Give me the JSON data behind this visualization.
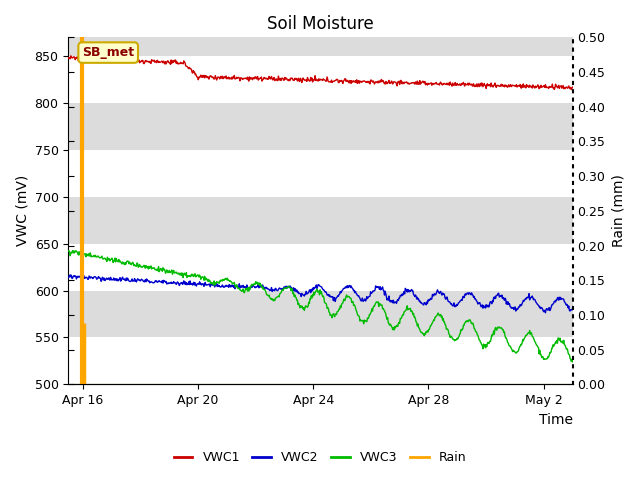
{
  "title": "Soil Moisture",
  "xlabel": "Time",
  "ylabel_left": "VWC (mV)",
  "ylabel_right": "Rain (mm)",
  "ylim_left": [
    500,
    870
  ],
  "ylim_right": [
    0.0,
    0.5
  ],
  "yticks_left": [
    500,
    550,
    600,
    650,
    700,
    750,
    800,
    850
  ],
  "yticks_right": [
    0.0,
    0.05,
    0.1,
    0.15,
    0.2,
    0.25,
    0.3,
    0.35,
    0.4,
    0.45,
    0.5
  ],
  "xtick_labels": [
    "Apr 16",
    "Apr 20",
    "Apr 24",
    "Apr 28",
    "May 2"
  ],
  "xtick_positions": [
    0.5,
    4.5,
    8.5,
    12.5,
    16.5
  ],
  "xlim": [
    0,
    17.5
  ],
  "annotation_text": "SB_met",
  "bg_color": "#dcdcdc",
  "plot_bg_color": "#dcdcdc",
  "vwc1_color": "#cc0000",
  "vwc2_color": "#0000cc",
  "vwc3_color": "#00bb00",
  "rain_color": "#ffa500",
  "grid_color": "#f0f0f0",
  "figsize": [
    6.4,
    4.8
  ],
  "dpi": 100,
  "title_fontsize": 12,
  "axis_label_fontsize": 10,
  "tick_fontsize": 9
}
